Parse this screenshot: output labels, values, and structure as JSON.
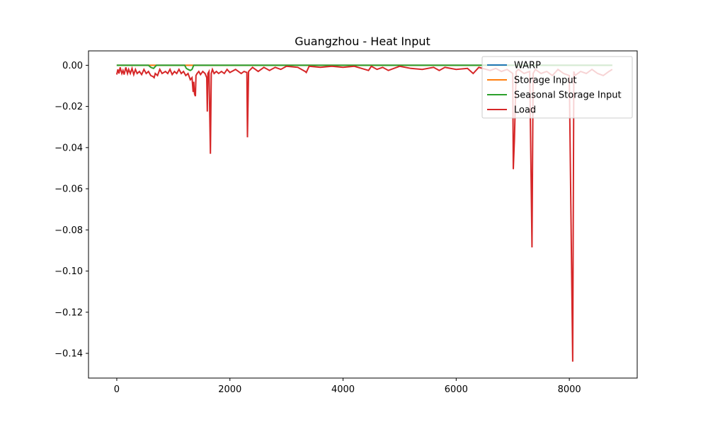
{
  "chart_data": {
    "type": "line",
    "title": "Guangzhou - Heat Input",
    "xlabel": "",
    "ylabel": "",
    "xlim": [
      -500,
      9200
    ],
    "ylim": [
      -0.152,
      0.007
    ],
    "x_ticks": [
      0,
      2000,
      4000,
      6000,
      8000
    ],
    "x_tick_labels": [
      "0",
      "2000",
      "4000",
      "6000",
      "8000"
    ],
    "y_ticks": [
      0.0,
      -0.02,
      -0.04,
      -0.06,
      -0.08,
      -0.1,
      -0.12,
      -0.14
    ],
    "y_tick_labels": [
      "0.00",
      "−0.02",
      "−0.04",
      "−0.06",
      "−0.08",
      "−0.10",
      "−0.12",
      "−0.14"
    ],
    "grid": false,
    "legend_position": "top-right",
    "series": [
      {
        "name": "WARP",
        "color": "#1f77b4",
        "x": [
          0,
          8760
        ],
        "values": [
          0,
          0
        ]
      },
      {
        "name": "Storage Input",
        "color": "#ff7f0e",
        "x": [
          0,
          8760
        ],
        "values": [
          0,
          0
        ]
      },
      {
        "name": "Seasonal Storage Input",
        "color": "#2ca02c",
        "x": [
          0,
          560,
          600,
          650,
          700,
          1200,
          1230,
          1260,
          1300,
          1330,
          1360,
          8760
        ],
        "values": [
          0,
          0,
          -0.001,
          -0.0015,
          0,
          0,
          -0.0015,
          -0.002,
          -0.0025,
          -0.002,
          0,
          0
        ]
      },
      {
        "name": "Load",
        "color": "#d62728",
        "x": [
          0,
          20,
          40,
          60,
          90,
          110,
          130,
          160,
          190,
          210,
          240,
          270,
          300,
          330,
          360,
          400,
          440,
          480,
          520,
          560,
          600,
          640,
          660,
          680,
          720,
          760,
          800,
          860,
          900,
          940,
          980,
          1020,
          1060,
          1100,
          1140,
          1180,
          1220,
          1260,
          1300,
          1330,
          1350,
          1360,
          1375,
          1390,
          1400,
          1420,
          1450,
          1480,
          1520,
          1560,
          1590,
          1600,
          1610,
          1630,
          1655,
          1670,
          1690,
          1720,
          1760,
          1800,
          1850,
          1900,
          1950,
          2000,
          2100,
          2200,
          2250,
          2300,
          2310,
          2330,
          2400,
          2500,
          2600,
          2700,
          2800,
          2900,
          3000,
          3200,
          3330,
          3350,
          3400,
          3600,
          3800,
          4000,
          4200,
          4450,
          4500,
          4600,
          4700,
          4800,
          5000,
          5200,
          5400,
          5600,
          5700,
          5800,
          6000,
          6200,
          6300,
          6400,
          6600,
          6700,
          6800,
          6900,
          7000,
          7010,
          7030,
          7060,
          7100,
          7200,
          7300,
          7340,
          7360,
          7400,
          7500,
          7600,
          7700,
          7800,
          7900,
          8000,
          8060,
          8080,
          8100,
          8200,
          8300,
          8400,
          8500,
          8600,
          8700,
          8760
        ],
        "values": [
          -0.0045,
          -0.002,
          -0.004,
          -0.001,
          -0.004,
          -0.0025,
          -0.0045,
          -0.001,
          -0.004,
          -0.002,
          -0.004,
          -0.0015,
          -0.0045,
          -0.002,
          -0.004,
          -0.003,
          -0.0045,
          -0.002,
          -0.004,
          -0.003,
          -0.005,
          -0.0055,
          -0.006,
          -0.004,
          -0.005,
          -0.002,
          -0.004,
          -0.003,
          -0.004,
          -0.002,
          -0.0045,
          -0.003,
          -0.004,
          -0.002,
          -0.004,
          -0.003,
          -0.005,
          -0.004,
          -0.007,
          -0.006,
          -0.013,
          -0.008,
          -0.014,
          -0.015,
          -0.005,
          -0.004,
          -0.003,
          -0.0045,
          -0.003,
          -0.004,
          -0.006,
          -0.0225,
          -0.004,
          -0.003,
          -0.043,
          -0.004,
          -0.002,
          -0.004,
          -0.003,
          -0.004,
          -0.003,
          -0.004,
          -0.002,
          -0.0035,
          -0.002,
          -0.004,
          -0.003,
          -0.0035,
          -0.035,
          -0.003,
          -0.001,
          -0.003,
          -0.001,
          -0.0025,
          -0.001,
          -0.002,
          -0.0005,
          -0.001,
          -0.003,
          -0.0035,
          -0.0005,
          -0.001,
          -0.0005,
          -0.001,
          -0.0005,
          -0.0025,
          -0.0005,
          -0.002,
          -0.001,
          -0.0025,
          -0.0005,
          -0.0015,
          -0.002,
          -0.001,
          -0.0025,
          -0.001,
          -0.002,
          -0.0015,
          -0.004,
          -0.001,
          -0.0025,
          -0.0015,
          -0.003,
          -0.002,
          -0.004,
          -0.0505,
          -0.036,
          -0.003,
          -0.002,
          -0.004,
          -0.003,
          -0.0885,
          -0.004,
          -0.002,
          -0.004,
          -0.003,
          -0.005,
          -0.002,
          -0.004,
          -0.005,
          -0.144,
          -0.003,
          -0.005,
          -0.003,
          -0.004,
          -0.002,
          -0.004,
          -0.005,
          -0.003,
          -0.002
        ]
      }
    ]
  }
}
